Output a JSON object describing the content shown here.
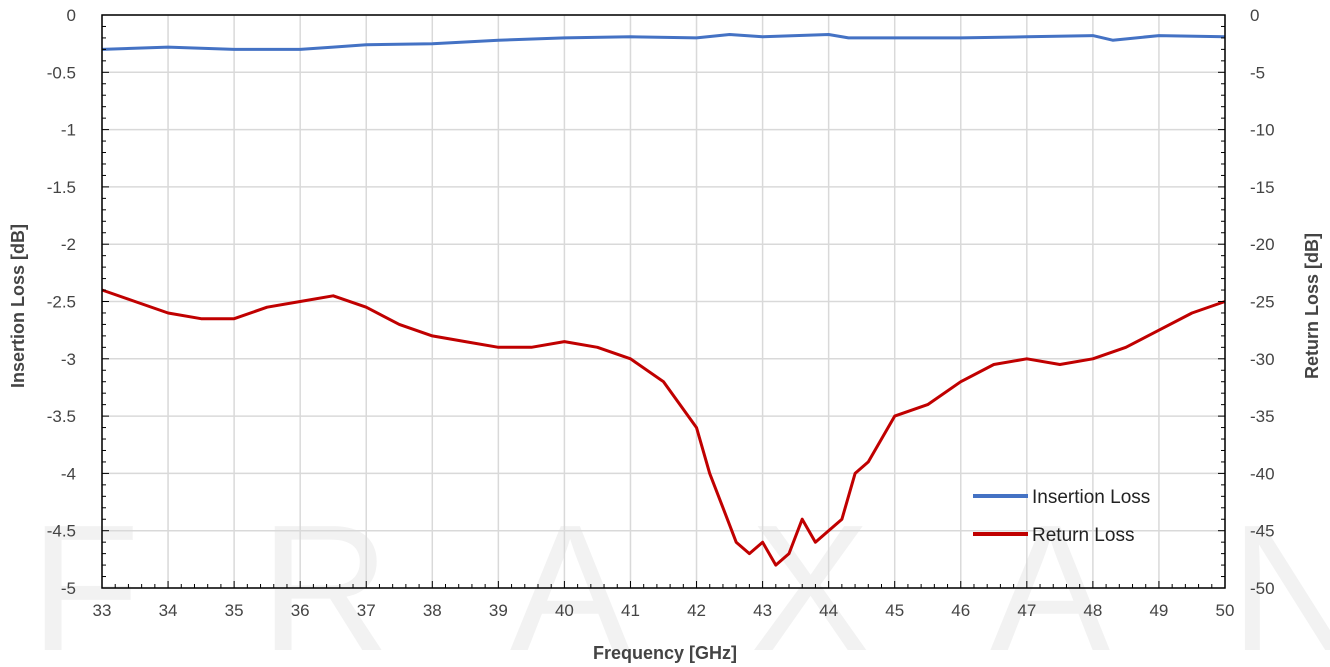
{
  "chart_data": {
    "type": "line",
    "watermark": "FRAXANT",
    "xlabel": "Frequency [GHz]",
    "ylabel_left": "Insertion Loss [dB]",
    "ylabel_right": "Return Loss [dB]",
    "xlim": [
      33,
      50
    ],
    "ylim_left": [
      -5,
      0
    ],
    "ylim_right": [
      -50,
      0
    ],
    "x_ticks": [
      33,
      34,
      35,
      36,
      37,
      38,
      39,
      40,
      41,
      42,
      43,
      44,
      45,
      46,
      47,
      48,
      49,
      50
    ],
    "y_left_ticks": [
      "0",
      "-0.5",
      "-1",
      "-1.5",
      "-2",
      "-2.5",
      "-3",
      "-3.5",
      "-4",
      "-4.5",
      "-5"
    ],
    "y_right_ticks": [
      "0",
      "-5",
      "-10",
      "-15",
      "-20",
      "-25",
      "-30",
      "-35",
      "-40",
      "-45",
      "-50"
    ],
    "grid": true,
    "legend_position": "bottom-right",
    "series": [
      {
        "name": "Insertion Loss",
        "axis": "left",
        "color": "#4472c4",
        "x": [
          33,
          34,
          35,
          36,
          36.5,
          37,
          38,
          39,
          40,
          41,
          42,
          42.5,
          43,
          43.5,
          44,
          44.3,
          45,
          46,
          47,
          48,
          48.3,
          49,
          50
        ],
        "y": [
          -0.3,
          -0.28,
          -0.3,
          -0.3,
          -0.28,
          -0.26,
          -0.25,
          -0.22,
          -0.2,
          -0.19,
          -0.2,
          -0.17,
          -0.19,
          -0.18,
          -0.17,
          -0.2,
          -0.2,
          -0.2,
          -0.19,
          -0.18,
          -0.22,
          -0.18,
          -0.19
        ]
      },
      {
        "name": "Return Loss",
        "axis": "right",
        "color": "#c00000",
        "x": [
          33,
          33.5,
          34,
          34.5,
          35,
          35.5,
          36,
          36.5,
          37,
          37.5,
          38,
          38.5,
          39,
          39.5,
          40,
          40.5,
          41,
          41.5,
          42,
          42.2,
          42.4,
          42.6,
          42.8,
          43,
          43.2,
          43.4,
          43.6,
          43.8,
          44,
          44.2,
          44.4,
          44.6,
          44.8,
          45,
          45.5,
          46,
          46.5,
          47,
          47.5,
          48,
          48.5,
          49,
          49.5,
          50
        ],
        "y": [
          -24,
          -25,
          -26,
          -26.5,
          -26.5,
          -25.5,
          -25,
          -24.5,
          -25.5,
          -27,
          -28,
          -28.5,
          -29,
          -29,
          -28.5,
          -29,
          -30,
          -32,
          -36,
          -40,
          -43,
          -46,
          -47,
          -46,
          -48,
          -47,
          -44,
          -46,
          -45,
          -44,
          -40,
          -39,
          -37,
          -35,
          -34,
          -32,
          -30.5,
          -30,
          -30.5,
          -30,
          -29,
          -27.5,
          -26,
          -25
        ]
      }
    ]
  }
}
